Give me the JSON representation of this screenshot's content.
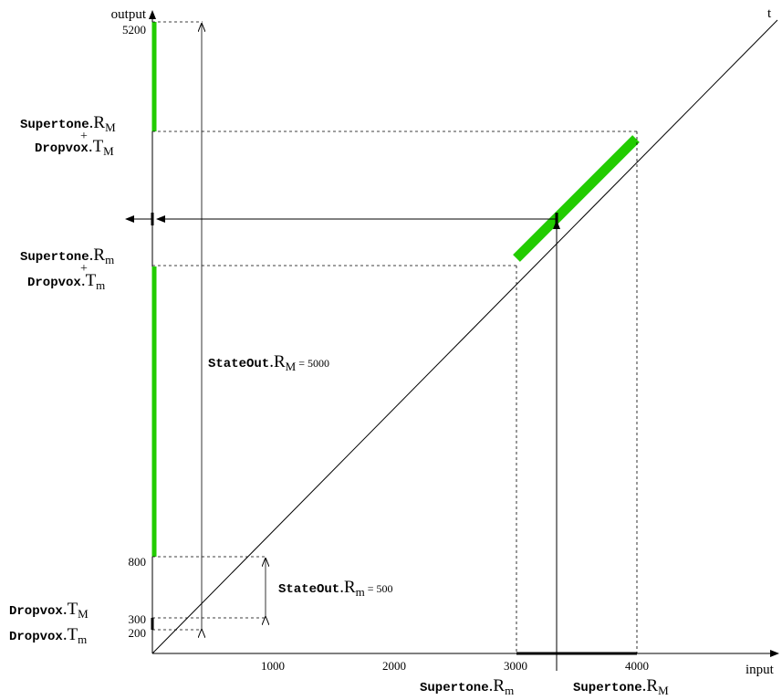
{
  "axes": {
    "y_label": "output",
    "x_label": "input",
    "diag_label": "t"
  },
  "y_ticks": [
    "5200",
    "800",
    "300",
    "200"
  ],
  "x_ticks": [
    "1000",
    "2000",
    "3000",
    "4000"
  ],
  "labels": {
    "upper_obj": "Supertone",
    "upper_var": "R",
    "upper_sub": "M",
    "plus": "+",
    "upper2_obj": "Dropvox",
    "upper2_var": "T",
    "upper2_sub": "M",
    "mid_obj": "Supertone",
    "mid_var": "R",
    "mid_sub": "m",
    "mid2_obj": "Dropvox",
    "mid2_var": "T",
    "mid2_sub": "m",
    "low1_obj": "Dropvox",
    "low1_var": "T",
    "low1_sub": "M",
    "low2_obj": "Dropvox",
    "low2_var": "T",
    "low2_sub": "m",
    "stateM_obj": "StateOut",
    "stateM_var": "R",
    "stateM_sub": "M",
    "stateM_val": "= 5000",
    "statem_obj": "StateOut",
    "statem_var": "R",
    "statem_sub": "m",
    "statem_val": "= 500",
    "xm_obj": "Supertone",
    "xm_var": "R",
    "xm_sub": "m",
    "xM_obj": "Supertone",
    "xM_var": "R",
    "xM_sub": "M",
    "dot": "."
  },
  "colors": {
    "highlight": "#22cc00",
    "line": "#000000"
  }
}
